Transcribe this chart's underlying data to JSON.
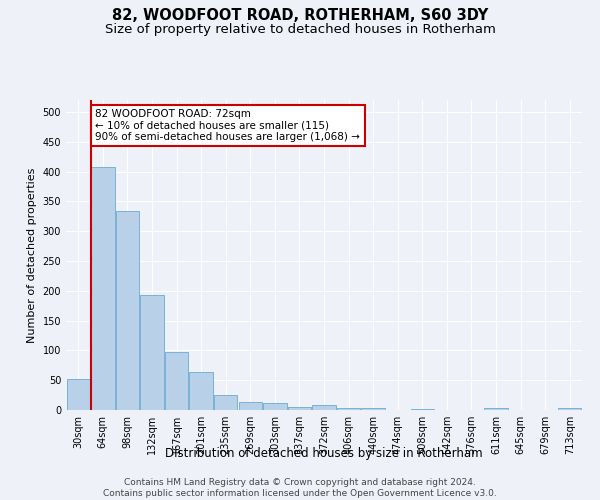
{
  "title1": "82, WOODFOOT ROAD, ROTHERHAM, S60 3DY",
  "title2": "Size of property relative to detached houses in Rotherham",
  "xlabel": "Distribution of detached houses by size in Rotherham",
  "ylabel": "Number of detached properties",
  "categories": [
    "30sqm",
    "64sqm",
    "98sqm",
    "132sqm",
    "167sqm",
    "201sqm",
    "235sqm",
    "269sqm",
    "303sqm",
    "337sqm",
    "372sqm",
    "406sqm",
    "440sqm",
    "474sqm",
    "508sqm",
    "542sqm",
    "576sqm",
    "611sqm",
    "645sqm",
    "679sqm",
    "713sqm"
  ],
  "values": [
    52,
    407,
    333,
    193,
    97,
    63,
    25,
    14,
    11,
    5,
    9,
    4,
    3,
    0,
    2,
    0,
    0,
    4,
    0,
    0,
    3
  ],
  "bar_color": "#b8d0e8",
  "bar_edge_color": "#6aaad4",
  "red_line_index": 1,
  "annotation_line1": "82 WOODFOOT ROAD: 72sqm",
  "annotation_line2": "← 10% of detached houses are smaller (115)",
  "annotation_line3": "90% of semi-detached houses are larger (1,068) →",
  "annotation_box_color": "#ffffff",
  "annotation_box_edge": "#cc0000",
  "background_color": "#eef2f8",
  "plot_background": "#eef2f8",
  "ylim": [
    0,
    520
  ],
  "yticks": [
    0,
    50,
    100,
    150,
    200,
    250,
    300,
    350,
    400,
    450,
    500
  ],
  "footer1": "Contains HM Land Registry data © Crown copyright and database right 2024.",
  "footer2": "Contains public sector information licensed under the Open Government Licence v3.0.",
  "title1_fontsize": 10.5,
  "title2_fontsize": 9.5,
  "xlabel_fontsize": 8.5,
  "ylabel_fontsize": 8,
  "tick_fontsize": 7,
  "footer_fontsize": 6.5,
  "annotation_fontsize": 7.5
}
